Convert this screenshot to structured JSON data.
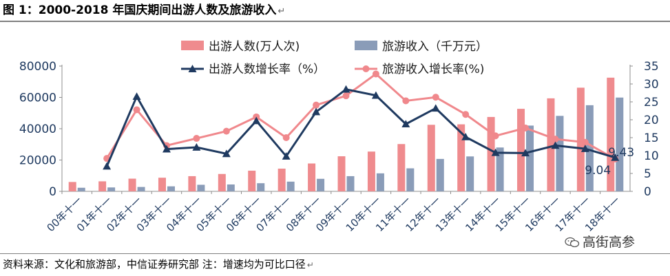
{
  "title": {
    "text": "图 1：2000-2018 年国庆期间出游人数及旅游收入",
    "mark": "↵"
  },
  "source": {
    "text": "资料来源：文化和旅游部，中信证券研究部      注：增速均为可比口径",
    "mark": "↵"
  },
  "watermark": {
    "text": "高街高参",
    "icon": "wechat-icon"
  },
  "colors": {
    "visitors_bar": "#ef8b8e",
    "revenue_bar": "#8a9cb8",
    "visitors_growth": "#1f3a60",
    "revenue_growth": "#f0888c",
    "axis_text": "#1f3a60"
  },
  "chart_data": {
    "type": "bar",
    "title": "2000-2018 年国庆期间出游人数及旅游收入",
    "categories": [
      "00年十一",
      "01年十一",
      "02年十一",
      "03年十一",
      "04年十一",
      "05年十一",
      "06年十一",
      "07年十一",
      "08年十一",
      "09年十一",
      "10年十一",
      "11年十一",
      "12年十一",
      "13年十一",
      "14年十一",
      "15年十一",
      "16年十一",
      "17年十一",
      "18年十一"
    ],
    "y_left": {
      "min": 0,
      "max": 80000,
      "ticks": [
        0,
        20000,
        40000,
        60000,
        80000
      ]
    },
    "y_right": {
      "min": 0,
      "max": 35,
      "ticks": [
        0,
        5,
        10,
        15,
        20,
        25,
        30,
        35
      ]
    },
    "series": [
      {
        "name": "出游人数(万人次)",
        "type": "bar",
        "axis": "left",
        "values": [
          5980,
          6400,
          8100,
          8700,
          9700,
          11100,
          13200,
          14500,
          17800,
          22400,
          25400,
          30200,
          42500,
          42800,
          47500,
          52700,
          59400,
          66200,
          72600
        ]
      },
      {
        "name": "旅游收入（千万元）",
        "type": "bar",
        "axis": "left",
        "values": [
          2300,
          2500,
          2800,
          3200,
          4200,
          4400,
          5200,
          6200,
          8000,
          9700,
          11500,
          14700,
          20700,
          22300,
          28000,
          42000,
          48200,
          55000,
          59900
        ]
      },
      {
        "name": "出游人数增长率（%）",
        "type": "line",
        "axis": "right",
        "marker": "triangle",
        "values": [
          null,
          7.0,
          26.5,
          11.8,
          12.3,
          10.5,
          19.7,
          9.8,
          22.2,
          28.5,
          26.8,
          18.8,
          23.2,
          15.2,
          10.8,
          10.7,
          12.8,
          11.9,
          9.43
        ]
      },
      {
        "name": "旅游收入增长率(%)",
        "type": "line",
        "axis": "right",
        "marker": "circle",
        "values": [
          null,
          9.2,
          22.8,
          12.8,
          14.8,
          16.8,
          20.8,
          15.0,
          24.1,
          26.7,
          32.8,
          25.3,
          26.3,
          21.5,
          15.5,
          17.7,
          14.6,
          13.7,
          9.04
        ]
      }
    ],
    "annotations": [
      "9.43",
      "9.04"
    ],
    "legend": "top-center"
  }
}
